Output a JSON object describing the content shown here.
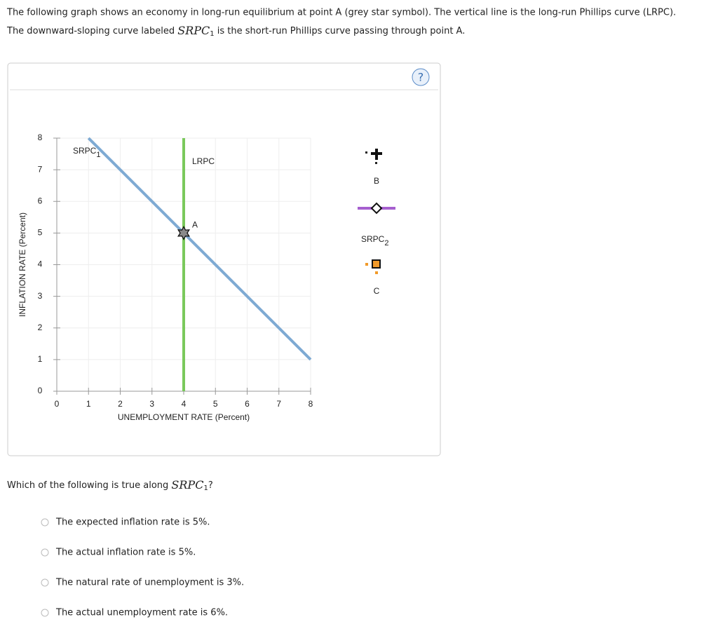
{
  "intro": {
    "line1": "The following graph shows an economy in long-run equilibrium at point A (grey star symbol). The vertical line is the long-run Phillips curve (LRPC).",
    "line2_before": "The downward-sloping curve labeled ",
    "line2_term": "SRPC",
    "line2_sub": "1",
    "line2_after": " is the short-run Phillips curve passing through point A."
  },
  "help": "?",
  "chart_data": {
    "type": "line",
    "xlabel": "UNEMPLOYMENT RATE (Percent)",
    "ylabel": "INFLATION RATE (Percent)",
    "xlim": [
      0,
      8
    ],
    "ylim": [
      0,
      8
    ],
    "xticks": [
      0,
      1,
      2,
      3,
      4,
      5,
      6,
      7,
      8
    ],
    "yticks": [
      0,
      1,
      2,
      3,
      4,
      5,
      6,
      7,
      8
    ],
    "grid": true,
    "series": [
      {
        "name": "SRPC",
        "name_sub": "1",
        "color": "#7eaad3",
        "x": [
          1,
          8
        ],
        "values": [
          8,
          1
        ]
      },
      {
        "name": "LRPC",
        "color": "#7ac95c",
        "x": [
          4,
          4
        ],
        "values": [
          0,
          8
        ]
      }
    ],
    "points": [
      {
        "label": "A",
        "x": 4,
        "y": 5,
        "color": "#8a8a8a"
      }
    ]
  },
  "palette": [
    {
      "label": "B"
    },
    {
      "label": "SRPC",
      "sub": "2"
    },
    {
      "label": "C"
    }
  ],
  "question": {
    "before": "Which of the following is true along ",
    "term": "SRPC",
    "sub": "1",
    "after": "?"
  },
  "options": [
    "The expected inflation rate is 5%.",
    "The actual inflation rate is 5%.",
    "The natural rate of unemployment is 3%.",
    "The actual unemployment rate is 6%."
  ]
}
